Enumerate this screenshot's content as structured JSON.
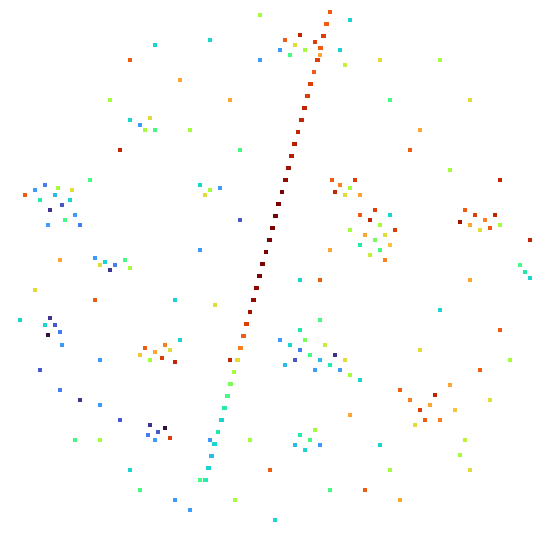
{
  "chart_data": {
    "type": "scatter",
    "tick_labels": false,
    "xlim": [
      0,
      553
    ],
    "ylim": [
      535,
      0
    ],
    "clim": [
      0,
      1
    ],
    "points": [
      [
        330,
        12,
        0.8
      ],
      [
        326.8,
        24,
        0.8
      ],
      [
        323.6,
        36,
        0.85
      ],
      [
        320.4,
        48,
        0.8
      ],
      [
        317.2,
        60,
        0.85
      ],
      [
        314,
        72,
        0.8
      ],
      [
        310.8,
        84,
        0.85
      ],
      [
        307.6,
        96,
        0.85
      ],
      [
        304.4,
        108,
        0.9
      ],
      [
        301.2,
        120,
        0.9
      ],
      [
        298,
        132,
        0.9
      ],
      [
        294.8,
        144,
        0.92
      ],
      [
        291.6,
        156,
        0.92
      ],
      [
        288.4,
        168,
        0.95
      ],
      [
        285.2,
        180,
        0.97
      ],
      [
        282,
        192,
        1.0
      ],
      [
        278.8,
        204,
        1.0
      ],
      [
        275.6,
        216,
        1.0
      ],
      [
        272.4,
        228,
        1.0
      ],
      [
        269.2,
        240,
        1.0
      ],
      [
        266,
        252,
        1.0
      ],
      [
        262.8,
        264,
        1.0
      ],
      [
        259.6,
        276,
        1.0
      ],
      [
        256.4,
        288,
        0.98
      ],
      [
        253.2,
        300,
        0.97
      ],
      [
        250,
        312,
        0.95
      ],
      [
        246.8,
        324,
        0.85
      ],
      [
        243.6,
        336,
        0.8
      ],
      [
        240.4,
        348,
        0.75
      ],
      [
        237.2,
        360,
        0.6
      ],
      [
        234,
        372,
        0.5
      ],
      [
        230.8,
        384,
        0.45
      ],
      [
        227.6,
        396,
        0.4
      ],
      [
        224.4,
        408,
        0.35
      ],
      [
        221.2,
        420,
        0.3
      ],
      [
        218,
        432,
        0.35
      ],
      [
        214.8,
        444,
        0.3
      ],
      [
        211.6,
        456,
        0.25
      ],
      [
        208.4,
        468,
        0.3
      ],
      [
        205.2,
        480,
        0.35
      ],
      [
        35,
        190,
        0.2
      ],
      [
        45,
        185,
        0.15
      ],
      [
        55,
        195,
        0.25
      ],
      [
        62,
        205,
        0.1
      ],
      [
        70,
        200,
        0.3
      ],
      [
        50,
        210,
        0.05
      ],
      [
        40,
        200,
        0.35
      ],
      [
        75,
        215,
        0.2
      ],
      [
        80,
        225,
        0.15
      ],
      [
        65,
        220,
        0.4
      ],
      [
        25,
        195,
        0.8
      ],
      [
        58,
        188,
        0.5
      ],
      [
        72,
        190,
        0.6
      ],
      [
        48,
        225,
        0.2
      ],
      [
        95,
        258,
        0.2
      ],
      [
        105,
        262,
        0.3
      ],
      [
        115,
        265,
        0.15
      ],
      [
        125,
        260,
        0.4
      ],
      [
        110,
        270,
        0.05
      ],
      [
        130,
        268,
        0.5
      ],
      [
        100,
        265,
        0.6
      ],
      [
        50,
        318,
        0.05
      ],
      [
        55,
        325,
        0.1
      ],
      [
        60,
        332,
        0.15
      ],
      [
        48,
        335,
        0.0
      ],
      [
        62,
        345,
        0.2
      ],
      [
        45,
        325,
        0.3
      ],
      [
        145,
        348,
        0.8
      ],
      [
        155,
        352,
        0.7
      ],
      [
        162,
        358,
        0.85
      ],
      [
        170,
        350,
        0.6
      ],
      [
        175,
        362,
        0.9
      ],
      [
        150,
        360,
        0.5
      ],
      [
        165,
        345,
        0.75
      ],
      [
        180,
        340,
        0.3
      ],
      [
        140,
        355,
        0.65
      ],
      [
        150,
        425,
        0.05
      ],
      [
        158,
        432,
        0.1
      ],
      [
        165,
        428,
        0.0
      ],
      [
        155,
        440,
        0.2
      ],
      [
        170,
        438,
        0.85
      ],
      [
        148,
        435,
        0.15
      ],
      [
        285,
        40,
        0.8
      ],
      [
        295,
        45,
        0.6
      ],
      [
        305,
        50,
        0.5
      ],
      [
        315,
        42,
        0.85
      ],
      [
        290,
        55,
        0.4
      ],
      [
        320,
        55,
        0.7
      ],
      [
        340,
        50,
        0.3
      ],
      [
        300,
        35,
        0.9
      ],
      [
        345,
        65,
        0.55
      ],
      [
        280,
        50,
        0.2
      ],
      [
        332,
        180,
        0.8
      ],
      [
        340,
        185,
        0.75
      ],
      [
        350,
        188,
        0.5
      ],
      [
        355,
        180,
        0.85
      ],
      [
        345,
        195,
        0.6
      ],
      [
        360,
        195,
        0.7
      ],
      [
        335,
        192,
        0.9
      ],
      [
        360,
        215,
        0.8
      ],
      [
        370,
        220,
        0.9
      ],
      [
        380,
        225,
        0.5
      ],
      [
        385,
        235,
        0.6
      ],
      [
        375,
        240,
        0.45
      ],
      [
        365,
        235,
        0.7
      ],
      [
        390,
        245,
        0.65
      ],
      [
        380,
        250,
        0.4
      ],
      [
        370,
        255,
        0.55
      ],
      [
        395,
        230,
        0.85
      ],
      [
        360,
        245,
        0.35
      ],
      [
        385,
        260,
        0.75
      ],
      [
        350,
        230,
        0.5
      ],
      [
        375,
        210,
        0.85
      ],
      [
        390,
        215,
        0.3
      ],
      [
        280,
        340,
        0.2
      ],
      [
        290,
        345,
        0.3
      ],
      [
        300,
        350,
        0.15
      ],
      [
        310,
        355,
        0.4
      ],
      [
        320,
        360,
        0.25
      ],
      [
        330,
        365,
        0.35
      ],
      [
        340,
        370,
        0.2
      ],
      [
        350,
        375,
        0.5
      ],
      [
        360,
        380,
        0.3
      ],
      [
        295,
        360,
        0.1
      ],
      [
        305,
        340,
        0.45
      ],
      [
        325,
        345,
        0.55
      ],
      [
        315,
        370,
        0.2
      ],
      [
        335,
        355,
        0.05
      ],
      [
        345,
        360,
        0.6
      ],
      [
        300,
        330,
        0.35
      ],
      [
        320,
        320,
        0.4
      ],
      [
        285,
        365,
        0.25
      ],
      [
        465,
        210,
        0.8
      ],
      [
        475,
        215,
        0.85
      ],
      [
        485,
        220,
        0.75
      ],
      [
        495,
        215,
        0.9
      ],
      [
        470,
        225,
        0.7
      ],
      [
        480,
        230,
        0.6
      ],
      [
        490,
        228,
        0.8
      ],
      [
        460,
        222,
        0.95
      ],
      [
        500,
        225,
        0.5
      ],
      [
        400,
        390,
        0.8
      ],
      [
        410,
        400,
        0.75
      ],
      [
        420,
        410,
        0.85
      ],
      [
        430,
        405,
        0.7
      ],
      [
        425,
        420,
        0.8
      ],
      [
        415,
        425,
        0.6
      ],
      [
        435,
        395,
        0.9
      ],
      [
        440,
        420,
        0.75
      ],
      [
        455,
        410,
        0.65
      ],
      [
        465,
        440,
        0.55
      ],
      [
        460,
        455,
        0.5
      ],
      [
        470,
        470,
        0.6
      ],
      [
        450,
        385,
        0.7
      ],
      [
        300,
        435,
        0.35
      ],
      [
        310,
        440,
        0.4
      ],
      [
        320,
        445,
        0.2
      ],
      [
        305,
        450,
        0.3
      ],
      [
        315,
        430,
        0.5
      ],
      [
        295,
        445,
        0.25
      ],
      [
        520,
        265,
        0.4
      ],
      [
        525,
        272,
        0.35
      ],
      [
        530,
        278,
        0.3
      ],
      [
        130,
        120,
        0.3
      ],
      [
        140,
        125,
        0.2
      ],
      [
        150,
        118,
        0.6
      ],
      [
        145,
        130,
        0.5
      ],
      [
        155,
        130,
        0.4
      ],
      [
        200,
        185,
        0.3
      ],
      [
        210,
        190,
        0.5
      ],
      [
        220,
        188,
        0.2
      ],
      [
        205,
        195,
        0.6
      ],
      [
        130,
        60,
        0.8
      ],
      [
        155,
        45,
        0.3
      ],
      [
        180,
        80,
        0.7
      ],
      [
        110,
        100,
        0.5
      ],
      [
        120,
        150,
        0.9
      ],
      [
        90,
        180,
        0.4
      ],
      [
        200,
        250,
        0.2
      ],
      [
        175,
        300,
        0.3
      ],
      [
        215,
        305,
        0.6
      ],
      [
        210,
        440,
        0.2
      ],
      [
        200,
        480,
        0.4
      ],
      [
        190,
        510,
        0.2
      ],
      [
        235,
        500,
        0.5
      ],
      [
        275,
        520,
        0.3
      ],
      [
        330,
        490,
        0.4
      ],
      [
        365,
        490,
        0.8
      ],
      [
        390,
        470,
        0.5
      ],
      [
        400,
        500,
        0.7
      ],
      [
        420,
        350,
        0.6
      ],
      [
        440,
        310,
        0.3
      ],
      [
        470,
        280,
        0.7
      ],
      [
        500,
        330,
        0.8
      ],
      [
        510,
        360,
        0.5
      ],
      [
        530,
        240,
        0.9
      ],
      [
        420,
        130,
        0.7
      ],
      [
        390,
        100,
        0.4
      ],
      [
        380,
        60,
        0.6
      ],
      [
        350,
        20,
        0.3
      ],
      [
        260,
        15,
        0.5
      ],
      [
        260,
        60,
        0.2
      ],
      [
        230,
        100,
        0.7
      ],
      [
        240,
        150,
        0.4
      ],
      [
        35,
        290,
        0.6
      ],
      [
        20,
        320,
        0.3
      ],
      [
        40,
        370,
        0.1
      ],
      [
        60,
        390,
        0.15
      ],
      [
        80,
        400,
        0.05
      ],
      [
        100,
        405,
        0.2
      ],
      [
        120,
        420,
        0.1
      ],
      [
        130,
        470,
        0.3
      ],
      [
        140,
        490,
        0.4
      ],
      [
        175,
        500,
        0.2
      ],
      [
        100,
        440,
        0.5
      ],
      [
        75,
        440,
        0.4
      ],
      [
        60,
        260,
        0.7
      ],
      [
        95,
        300,
        0.8
      ],
      [
        210,
        40,
        0.3
      ],
      [
        190,
        130,
        0.5
      ],
      [
        240,
        220,
        0.1
      ],
      [
        250,
        440,
        0.5
      ],
      [
        270,
        470,
        0.8
      ],
      [
        350,
        415,
        0.7
      ],
      [
        380,
        445,
        0.3
      ],
      [
        480,
        370,
        0.8
      ],
      [
        490,
        400,
        0.6
      ],
      [
        450,
        170,
        0.5
      ],
      [
        410,
        150,
        0.8
      ],
      [
        500,
        180,
        0.9
      ],
      [
        300,
        280,
        0.3
      ],
      [
        320,
        280,
        0.8
      ],
      [
        330,
        250,
        0.7
      ],
      [
        230,
        360,
        0.9
      ],
      [
        100,
        360,
        0.2
      ],
      [
        470,
        100,
        0.6
      ],
      [
        440,
        60,
        0.5
      ]
    ]
  }
}
